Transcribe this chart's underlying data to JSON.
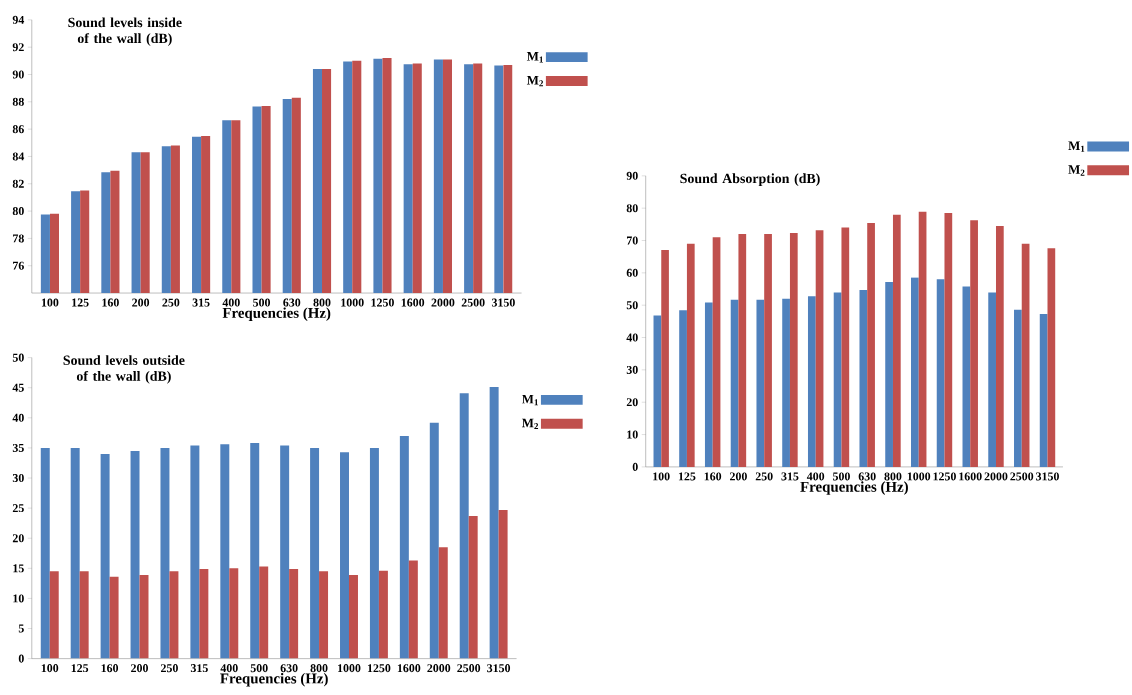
{
  "chart_data": [
    {
      "type": "bar",
      "title": "Sound levels inside of the wall (dB)",
      "xlabel": "Frequencies (Hz)",
      "categories": [
        "100",
        "125",
        "160",
        "200",
        "250",
        "315",
        "400",
        "500",
        "630",
        "800",
        "1000",
        "1250",
        "1600",
        "2000",
        "2500",
        "3150"
      ],
      "series": [
        {
          "name": "M$_{1}$",
          "color": "#4f81bd",
          "values": [
            79.75,
            81.45,
            82.85,
            84.3,
            84.75,
            85.45,
            86.65,
            87.65,
            88.2,
            90.4,
            90.95,
            91.15,
            90.75,
            91.1,
            90.75,
            90.65
          ]
        },
        {
          "name": "M$_{2}$",
          "color": "#c0504d",
          "values": [
            79.8,
            81.5,
            82.95,
            84.3,
            84.8,
            85.5,
            86.65,
            87.7,
            88.3,
            90.4,
            91.0,
            91.2,
            90.8,
            91.1,
            90.8,
            90.7
          ]
        }
      ],
      "ylim": [
        74,
        94
      ],
      "yticks": [
        76,
        78,
        80,
        82,
        84,
        86,
        88,
        90,
        92,
        94
      ],
      "legend": "right",
      "grid": false
    },
    {
      "type": "bar",
      "title": "Sound Absorption (dB)",
      "xlabel": "Frequencies (Hz)",
      "categories": [
        "100",
        "125",
        "160",
        "200",
        "250",
        "315",
        "400",
        "500",
        "630",
        "800",
        "1000",
        "1250",
        "1600",
        "2000",
        "2500",
        "3150"
      ],
      "series": [
        {
          "name": "M$_{1}$",
          "color": "#4f81bd",
          "values": [
            46.8,
            48.4,
            50.8,
            51.7,
            51.7,
            52,
            52.8,
            53.9,
            54.7,
            57.2,
            58.6,
            58,
            55.8,
            53.9,
            48.6,
            47.3
          ]
        },
        {
          "name": "M$_{2}$",
          "color": "#c0504d",
          "values": [
            67.1,
            69,
            71,
            72,
            72,
            72.3,
            73.2,
            74,
            75.4,
            78,
            79,
            78.5,
            76.3,
            74.5,
            69,
            67.6
          ]
        }
      ],
      "ylim": [
        0,
        90
      ],
      "yticks": [
        0,
        10,
        20,
        30,
        40,
        50,
        60,
        70,
        80,
        90
      ],
      "legend": "top right",
      "grid": false
    },
    {
      "type": "bar",
      "title": "Sound levels outside of the wall (dB)",
      "xlabel": "Frequencies (Hz)",
      "categories": [
        "100",
        "125",
        "160",
        "200",
        "250",
        "315",
        "400",
        "500",
        "630",
        "800",
        "1000",
        "1250",
        "1600",
        "2000",
        "2500",
        "3150"
      ],
      "series": [
        {
          "name": "M$_{1}$",
          "color": "#4f81bd",
          "values": [
            35,
            35,
            34,
            34.5,
            35,
            35.4,
            35.6,
            35.8,
            35.4,
            35,
            34.3,
            35,
            37,
            39.2,
            44.1,
            45.1
          ]
        },
        {
          "name": "M$_{2}$",
          "color": "#c0504d",
          "values": [
            14.5,
            14.5,
            13.6,
            13.9,
            14.5,
            14.9,
            15,
            15.3,
            14.9,
            14.5,
            13.9,
            14.6,
            16.3,
            18.5,
            23.7,
            24.7
          ]
        }
      ],
      "ylim": [
        0,
        50
      ],
      "yticks": [
        0,
        5,
        10,
        15,
        20,
        25,
        30,
        35,
        40,
        45,
        50
      ],
      "legend": "right",
      "grid": false
    }
  ]
}
